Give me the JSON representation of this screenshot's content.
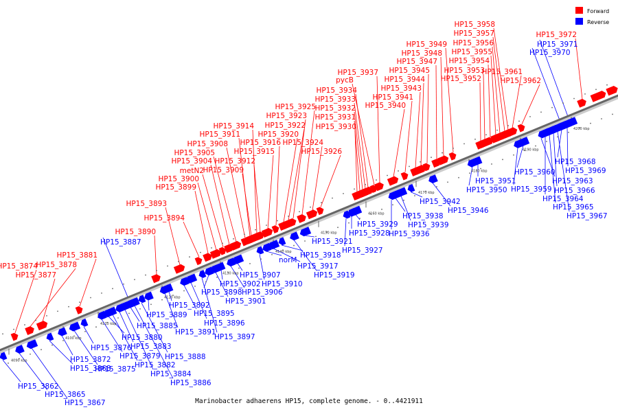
{
  "caption": "Marinobacter adhaerens HP15, complete genome. - 0..4421911",
  "legend": {
    "forward": {
      "label": "Forward",
      "color": "#ff0000"
    },
    "reverse": {
      "label": "Reverse",
      "color": "#0000ff"
    }
  },
  "ticks": [
    "4090 kbp",
    "4100 kbp",
    "4110 kbp",
    "4120 kbp",
    "4130 kbp",
    "4140 kbp",
    "4150 kbp",
    "4160 kbp",
    "4170 kbp",
    "4180 kbp",
    "4190 kbp",
    "4200 kbp"
  ],
  "forward_genes": [
    "HP15_3874",
    "HP15_3878",
    "HP15_3877",
    "HP15_3881",
    "HP15_3890",
    "HP15_3893",
    "HP15_3894",
    "HP15_3899",
    "HP15_3900",
    "metN2",
    "HP15_3904",
    "HP15_3905",
    "HP15_3908",
    "HP15_3911",
    "HP15_3914",
    "HP15_3909",
    "HP15_3912",
    "HP15_3915",
    "HP15_3916",
    "HP15_3920",
    "HP15_3922",
    "HP15_3923",
    "HP15_3925",
    "HP15_3924",
    "HP15_3926",
    "HP15_3930",
    "HP15_3931",
    "HP15_3932",
    "HP15_3933",
    "HP15_3934",
    "pycB",
    "HP15_3937",
    "HP15_3940",
    "HP15_3941",
    "HP15_3943",
    "HP15_3944",
    "HP15_3945",
    "HP15_3947",
    "HP15_3948",
    "HP15_3949",
    "HP15_3952",
    "HP15_3953",
    "HP15_3954",
    "HP15_3955",
    "HP15_3956",
    "HP15_3957",
    "HP15_3958",
    "HP15_3961",
    "HP15_3962",
    "HP15_3972"
  ],
  "reverse_genes": [
    "HP15_3862",
    "HP15_3865",
    "HP15_3867",
    "HP15_3868",
    "HP15_3872",
    "HP15_3875",
    "HP15_3876",
    "HP15_3879",
    "HP15_3880",
    "HP15_3882",
    "HP15_3883",
    "HP15_3884",
    "HP15_3885",
    "HP15_3886",
    "HP15_3887",
    "HP15_3888",
    "HP15_3889",
    "HP15_3891",
    "HP15_3892",
    "HP15_3895",
    "HP15_3896",
    "HP15_3897",
    "HP15_3898",
    "HP15_3901",
    "HP15_3902",
    "HP15_3906",
    "HP15_3907",
    "HP15_3910",
    "norM",
    "HP15_3917",
    "HP15_3918",
    "HP15_3919",
    "HP15_3921",
    "HP15_3927",
    "HP15_3928",
    "HP15_3929",
    "HP15_3936",
    "HP15_3938",
    "HP15_3939",
    "HP15_3942",
    "HP15_3946",
    "HP15_3950",
    "HP15_3951",
    "HP15_3959",
    "HP15_3960",
    "HP15_3963",
    "HP15_3964",
    "HP15_3965",
    "HP15_3966",
    "HP15_3967",
    "HP15_3968",
    "HP15_3969",
    "HP15_3970",
    "HP15_3971"
  ]
}
